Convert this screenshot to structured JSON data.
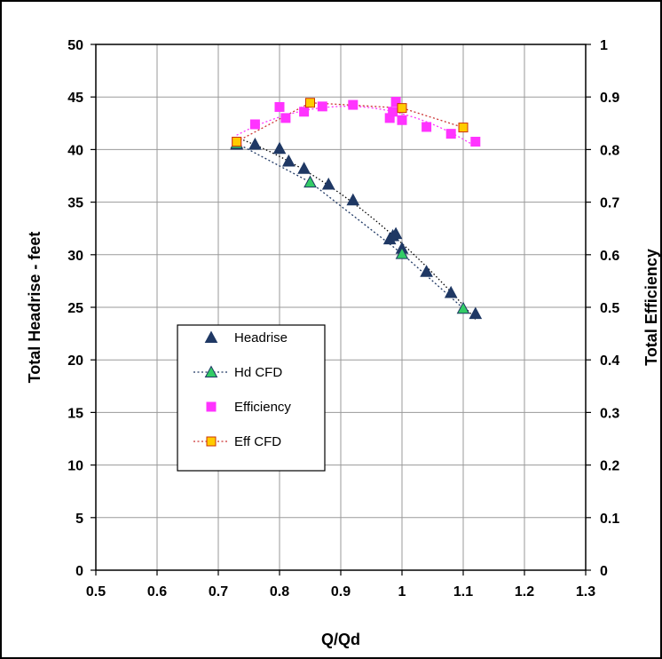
{
  "chart_data": {
    "type": "scatter",
    "xlabel": "Q/Qd",
    "ylabel_left": "Total Headrise - feet",
    "ylabel_right": "Total Efficiency",
    "xlim": [
      0.5,
      1.3
    ],
    "ylim_left": [
      0,
      50
    ],
    "ylim_right": [
      0,
      1
    ],
    "x_ticks": [
      "0.5",
      "0.6",
      "0.7",
      "0.8",
      "0.9",
      "1",
      "1.1",
      "1.2",
      "1.3"
    ],
    "y_left_ticks": [
      "0",
      "5",
      "10",
      "15",
      "20",
      "25",
      "30",
      "35",
      "40",
      "45",
      "50"
    ],
    "y_right_ticks": [
      "0",
      "0.1",
      "0.2",
      "0.3",
      "0.4",
      "0.5",
      "0.6",
      "0.7",
      "0.8",
      "0.9",
      "1"
    ],
    "grid": true,
    "legend_position": "lower-left",
    "series": [
      {
        "name": "Headrise",
        "axis": "left",
        "marker": "triangle",
        "color": "#1f3864",
        "trendline": true,
        "x": [
          0.73,
          0.76,
          0.8,
          0.815,
          0.84,
          0.88,
          0.92,
          0.98,
          0.985,
          0.99,
          1.0,
          1.04,
          1.08,
          1.12
        ],
        "y": [
          40.5,
          40.5,
          40.1,
          38.9,
          38.2,
          36.7,
          35.2,
          31.5,
          31.8,
          32.0,
          30.6,
          28.4,
          26.4,
          24.4
        ]
      },
      {
        "name": "Hd CFD",
        "axis": "left",
        "marker": "triangle",
        "color": "#33cc66",
        "line_style": "dotted",
        "x": [
          0.73,
          0.85,
          1.0,
          1.1
        ],
        "y": [
          40.6,
          36.9,
          30.1,
          24.9
        ]
      },
      {
        "name": "Efficiency",
        "axis": "right",
        "marker": "square",
        "color": "#ff33ff",
        "trendline": true,
        "x": [
          0.73,
          0.76,
          0.8,
          0.81,
          0.84,
          0.87,
          0.92,
          0.98,
          0.985,
          0.99,
          1.0,
          1.04,
          1.08,
          1.12
        ],
        "y": [
          0.815,
          0.848,
          0.881,
          0.86,
          0.872,
          0.882,
          0.885,
          0.86,
          0.872,
          0.891,
          0.856,
          0.843,
          0.83,
          0.815
        ]
      },
      {
        "name": "Eff CFD",
        "axis": "right",
        "marker": "square",
        "color": "#ffcc00",
        "line_style": "dotted",
        "x": [
          0.73,
          0.85,
          1.0,
          1.1
        ],
        "y": [
          0.815,
          0.889,
          0.879,
          0.842
        ]
      }
    ]
  }
}
